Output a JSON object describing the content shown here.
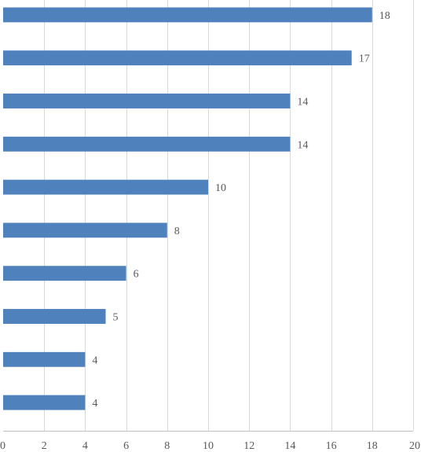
{
  "chart_data": {
    "type": "bar",
    "orientation": "horizontal",
    "values": [
      18,
      17,
      14,
      14,
      10,
      8,
      6,
      5,
      4,
      4
    ],
    "data_labels": [
      "18",
      "17",
      "14",
      "14",
      "10",
      "8",
      "6",
      "5",
      "4",
      "4"
    ],
    "xlim": [
      0,
      20
    ],
    "x_ticks": [
      0,
      2,
      4,
      6,
      8,
      10,
      12,
      14,
      16,
      18,
      20
    ],
    "x_tick_labels": [
      "0",
      "2",
      "4",
      "6",
      "8",
      "10",
      "12",
      "14",
      "16",
      "18",
      "20"
    ],
    "title": "",
    "xlabel": "",
    "ylabel": "",
    "grid": "vertical",
    "legend": "none",
    "bar_color": "#4f81bd"
  }
}
